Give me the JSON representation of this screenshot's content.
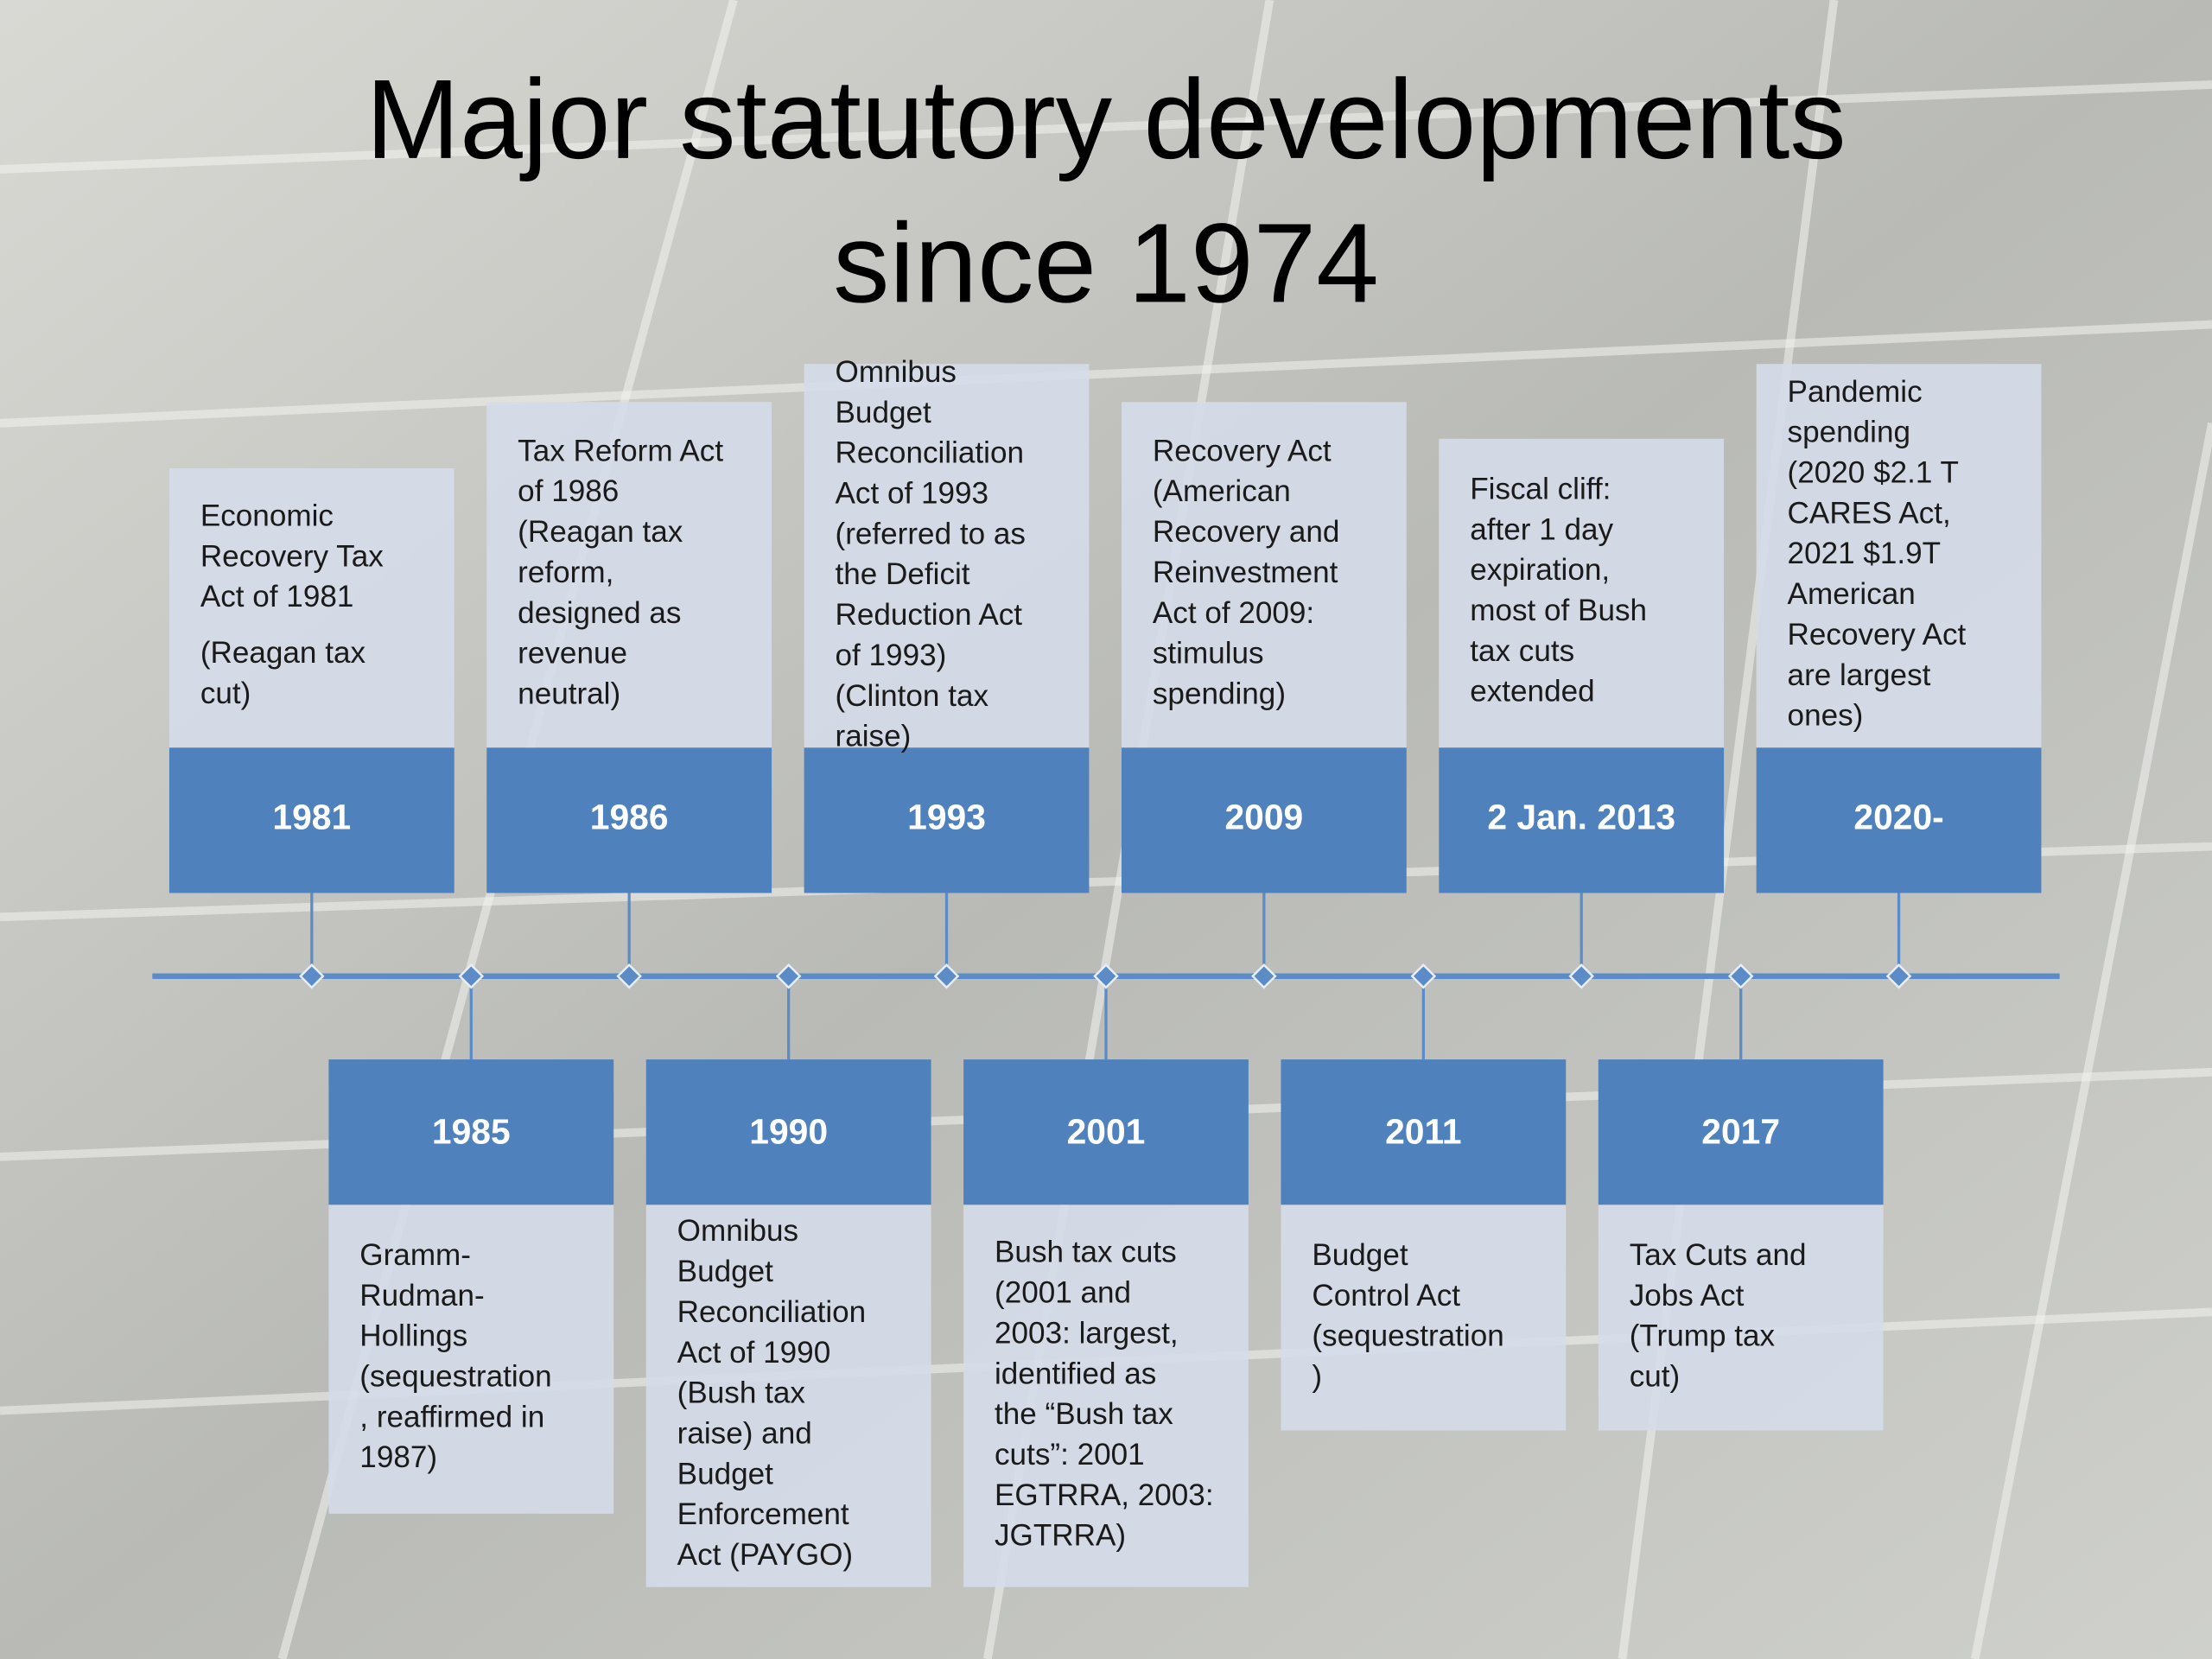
{
  "title": [
    "Major statutory developments",
    "since 1974"
  ],
  "top_events": [
    {
      "year": "1981",
      "text": [
        [
          "Economic",
          "Recovery Tax",
          "Act of 1981"
        ],
        [
          "(Reagan tax",
          "cut)"
        ]
      ]
    },
    {
      "year": "1986",
      "text": [
        [
          "Tax Reform Act",
          "of 1986",
          "(Reagan tax",
          "reform,",
          "designed as",
          "revenue",
          "neutral)"
        ]
      ]
    },
    {
      "year": "1993",
      "text": [
        [
          "Omnibus",
          "Budget",
          "Reconciliation",
          "Act of 1993",
          "(referred to as",
          "the Deficit",
          "Reduction Act",
          "of 1993)",
          "(Clinton tax",
          "raise)"
        ]
      ]
    },
    {
      "year": "2009",
      "text": [
        [
          "Recovery Act",
          "(American",
          "Recovery and",
          "Reinvestment",
          "Act of 2009:",
          "stimulus",
          "spending)"
        ]
      ]
    },
    {
      "year": "2 Jan. 2013",
      "text": [
        [
          "Fiscal cliff:",
          "after 1 day",
          "expiration,",
          "most of Bush",
          "tax cuts",
          "extended"
        ]
      ]
    },
    {
      "year": "2020-",
      "text": [
        [
          "Pandemic",
          "spending",
          "(2020 $2.1 T",
          "CARES Act,",
          "2021 $1.9T",
          "American",
          "Recovery Act",
          "are largest",
          "ones)"
        ]
      ]
    }
  ],
  "bottom_events": [
    {
      "year": "1985",
      "text": [
        [
          "Gramm-",
          "Rudman-",
          "Hollings",
          "(sequestration",
          ", reaffirmed in",
          "1987)"
        ]
      ]
    },
    {
      "year": "1990",
      "text": [
        [
          "Omnibus",
          "Budget",
          "Reconciliation",
          "Act of 1990",
          "(Bush tax",
          "raise) and",
          "Budget",
          "Enforcement",
          "Act (PAYGO)"
        ]
      ]
    },
    {
      "year": "2001",
      "text": [
        [
          "Bush tax cuts",
          "(2001 and",
          "2003: largest,",
          "identified as",
          "the “Bush tax",
          "cuts”: 2001",
          "EGTRRA, 2003:",
          "JGTRRA)"
        ]
      ]
    },
    {
      "year": "2011",
      "text": [
        [
          "Budget",
          "Control Act",
          "(sequestration",
          ")"
        ]
      ]
    },
    {
      "year": "2017",
      "text": [
        [
          "Tax Cuts and",
          "Jobs Act",
          "(Trump tax",
          "cut)"
        ]
      ]
    }
  ]
}
